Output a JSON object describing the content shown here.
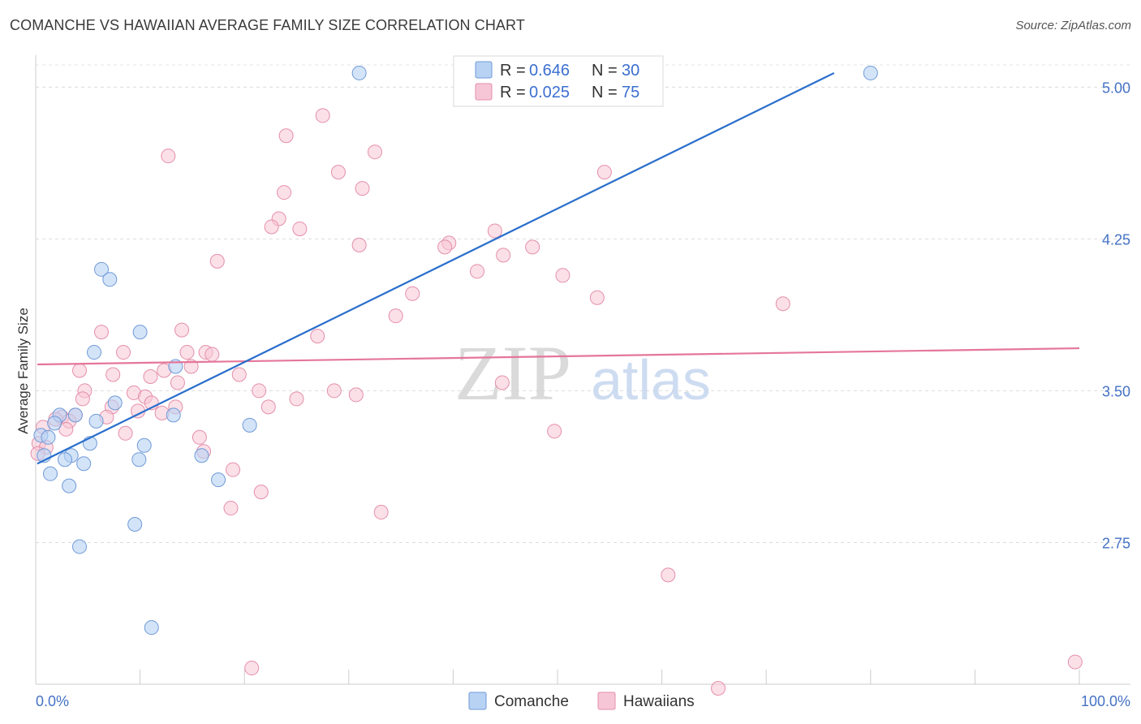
{
  "title": "COMANCHE VS HAWAIIAN AVERAGE FAMILY SIZE CORRELATION CHART",
  "source": "Source: ZipAtlas.com",
  "colors": {
    "comanche_fill": "#b8d2f4",
    "comanche_stroke": "#6f9ad8",
    "comanche_line": "#2a6fcc",
    "hawaiian_fill": "#f7c6d6",
    "hawaiian_stroke": "#e58fab",
    "hawaiian_line": "#e5769a",
    "tick_label": "#4472c4"
  },
  "legend": {
    "comanche": {
      "r_label": "R =",
      "r_value": "0.646",
      "n_label": "N =",
      "n_value": "30"
    },
    "hawaiian": {
      "r_label": "R =",
      "r_value": "0.025",
      "n_label": "N =",
      "n_value": "75"
    }
  },
  "watermark": {
    "zip": "ZIP",
    "atlas": "atlas"
  },
  "chart_data": {
    "type": "scatter",
    "title": "COMANCHE VS HAWAIIAN AVERAGE FAMILY SIZE CORRELATION CHART",
    "xlabel": "",
    "ylabel": "Average Family Size",
    "xlim": [
      0,
      100
    ],
    "ylim": [
      2.05,
      5.15
    ],
    "x_tick_labels": [
      "0.0%",
      "100.0%"
    ],
    "y_ticks": [
      2.75,
      3.5,
      4.25,
      5.0
    ],
    "y_tick_labels": [
      "2.75",
      "3.50",
      "4.25",
      "5.00"
    ],
    "grid": true,
    "legend_position": "top-center",
    "series": [
      {
        "name": "Comanche",
        "r": 0.646,
        "n": 30,
        "trend": {
          "x": [
            0,
            76.5
          ],
          "y": [
            3.14,
            5.07
          ]
        },
        "points": [
          [
            31,
            5.07
          ],
          [
            80,
            5.07
          ],
          [
            6.3,
            4.1
          ],
          [
            7.1,
            4.05
          ],
          [
            10,
            3.79
          ],
          [
            5.6,
            3.69
          ],
          [
            13.4,
            3.62
          ],
          [
            7.6,
            3.44
          ],
          [
            2.3,
            3.38
          ],
          [
            3.8,
            3.38
          ],
          [
            13.2,
            3.38
          ],
          [
            5.8,
            3.35
          ],
          [
            1.8,
            3.34
          ],
          [
            20.5,
            3.33
          ],
          [
            0.5,
            3.28
          ],
          [
            1.2,
            3.27
          ],
          [
            10.4,
            3.23
          ],
          [
            5.2,
            3.24
          ],
          [
            0.8,
            3.18
          ],
          [
            3.4,
            3.18
          ],
          [
            15.9,
            3.18
          ],
          [
            2.8,
            3.16
          ],
          [
            9.9,
            3.16
          ],
          [
            4.6,
            3.14
          ],
          [
            1.4,
            3.09
          ],
          [
            17.5,
            3.06
          ],
          [
            3.2,
            3.03
          ],
          [
            9.5,
            2.84
          ],
          [
            4.2,
            2.73
          ],
          [
            11.1,
            2.33
          ]
        ]
      },
      {
        "name": "Hawaiians",
        "r": 0.025,
        "n": 75,
        "trend": {
          "x": [
            0,
            100
          ],
          "y": [
            3.63,
            3.71
          ]
        },
        "points": [
          [
            27.5,
            4.86
          ],
          [
            24,
            4.76
          ],
          [
            32.5,
            4.68
          ],
          [
            12.7,
            4.66
          ],
          [
            29,
            4.58
          ],
          [
            54.5,
            4.58
          ],
          [
            31.3,
            4.5
          ],
          [
            23.8,
            4.48
          ],
          [
            23.3,
            4.35
          ],
          [
            22.6,
            4.31
          ],
          [
            25.3,
            4.3
          ],
          [
            44,
            4.29
          ],
          [
            39.6,
            4.23
          ],
          [
            31,
            4.22
          ],
          [
            39.2,
            4.21
          ],
          [
            47.6,
            4.21
          ],
          [
            44.8,
            4.17
          ],
          [
            17.4,
            4.14
          ],
          [
            42.3,
            4.09
          ],
          [
            50.5,
            4.07
          ],
          [
            36.1,
            3.98
          ],
          [
            53.8,
            3.96
          ],
          [
            71.6,
            3.93
          ],
          [
            34.5,
            3.87
          ],
          [
            14,
            3.8
          ],
          [
            6.3,
            3.79
          ],
          [
            27,
            3.77
          ],
          [
            8.4,
            3.69
          ],
          [
            14.5,
            3.69
          ],
          [
            16.3,
            3.69
          ],
          [
            16.9,
            3.68
          ],
          [
            14.9,
            3.62
          ],
          [
            4.2,
            3.6
          ],
          [
            7.4,
            3.58
          ],
          [
            12.3,
            3.6
          ],
          [
            11,
            3.57
          ],
          [
            19.5,
            3.58
          ],
          [
            13.6,
            3.54
          ],
          [
            44.7,
            3.54
          ],
          [
            4.7,
            3.5
          ],
          [
            21.4,
            3.5
          ],
          [
            28.6,
            3.5
          ],
          [
            9.4,
            3.49
          ],
          [
            30.7,
            3.48
          ],
          [
            10.5,
            3.47
          ],
          [
            25,
            3.46
          ],
          [
            4.5,
            3.46
          ],
          [
            11.1,
            3.44
          ],
          [
            13.4,
            3.42
          ],
          [
            7.3,
            3.42
          ],
          [
            22.3,
            3.42
          ],
          [
            9.8,
            3.4
          ],
          [
            12.1,
            3.39
          ],
          [
            3.8,
            3.38
          ],
          [
            6.8,
            3.37
          ],
          [
            2.5,
            3.37
          ],
          [
            1.9,
            3.36
          ],
          [
            3.2,
            3.35
          ],
          [
            0.7,
            3.32
          ],
          [
            2.9,
            3.31
          ],
          [
            8.6,
            3.29
          ],
          [
            49.7,
            3.3
          ],
          [
            15.7,
            3.27
          ],
          [
            0.3,
            3.24
          ],
          [
            16.1,
            3.2
          ],
          [
            18.9,
            3.11
          ],
          [
            33.1,
            2.9
          ],
          [
            21.6,
            3.0
          ],
          [
            18.7,
            2.92
          ],
          [
            60.6,
            2.59
          ],
          [
            99.6,
            2.16
          ],
          [
            20.7,
            2.13
          ],
          [
            65.4,
            2.03
          ],
          [
            1.0,
            3.22
          ],
          [
            0.2,
            3.19
          ]
        ]
      }
    ]
  }
}
